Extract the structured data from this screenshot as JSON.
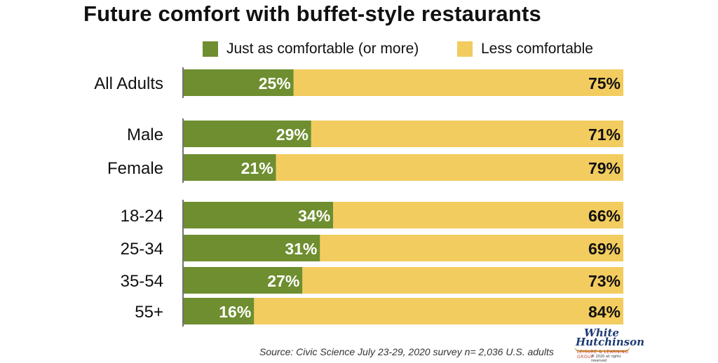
{
  "chart_data": {
    "type": "bar",
    "orientation": "horizontal",
    "stacked": true,
    "title": "Future comfort with buffet-style restaurants",
    "categories": [
      "All Adults",
      "Male",
      "Female",
      "18-24",
      "25-34",
      "35-54",
      "55+"
    ],
    "groups": [
      [
        "All Adults"
      ],
      [
        "Male",
        "Female"
      ],
      [
        "18-24",
        "25-34",
        "35-54",
        "55+"
      ]
    ],
    "series": [
      {
        "name": "Just as comfortable (or more)",
        "values": [
          25,
          29,
          21,
          34,
          31,
          27,
          16
        ],
        "labels": [
          "25%",
          "29%",
          "21%",
          "34%",
          "31%",
          "27%",
          "16%"
        ],
        "color": "#6e8e2f"
      },
      {
        "name": "Less comfortable",
        "values": [
          75,
          71,
          79,
          66,
          69,
          73,
          84
        ],
        "labels": [
          "75%",
          "71%",
          "79%",
          "66%",
          "69%",
          "73%",
          "84%"
        ],
        "color": "#f2cc5e"
      }
    ],
    "xlim": [
      0,
      100
    ],
    "grid": false,
    "legend_position": "top"
  },
  "source": "Source: Civic Science July 23-29, 2020 survey n= 2,036 U.S. adults",
  "logo": {
    "line1": "White",
    "line2": "Hutchinson",
    "sub": "LEISURE & LEARNING GROUP",
    "copy": "© 2020 all rights reserved"
  }
}
